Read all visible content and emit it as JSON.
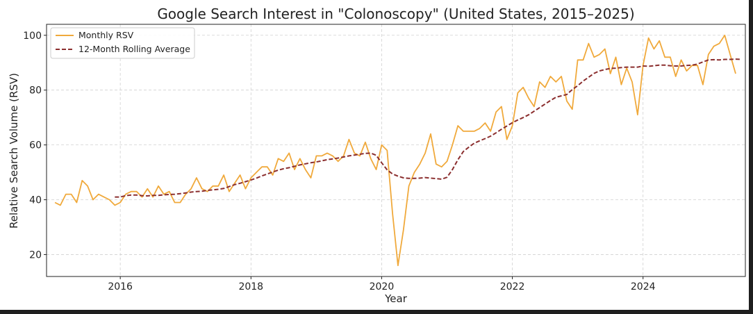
{
  "chart_data": {
    "type": "line",
    "title": "Google Search Interest in \"Colonoscopy\" (United States, 2015–2025)",
    "xlabel": "Year",
    "ylabel": "Relative Search Volume (RSV)",
    "xlim": [
      "2014-11-15",
      "2025-07-25"
    ],
    "ylim": [
      12,
      104
    ],
    "x_ticks": [
      {
        "label": "2016",
        "value": "2016-01-01"
      },
      {
        "label": "2018",
        "value": "2018-01-01"
      },
      {
        "label": "2020",
        "value": "2020-01-01"
      },
      {
        "label": "2022",
        "value": "2022-01-01"
      },
      {
        "label": "2024",
        "value": "2024-01-01"
      }
    ],
    "y_ticks": [
      20,
      40,
      60,
      80,
      100
    ],
    "grid": true,
    "legend_position": "top-left",
    "series": [
      {
        "name": "Monthly RSV",
        "color": "#f0a93b",
        "style": "solid",
        "start_month": "2015-01",
        "values": [
          39,
          38,
          42,
          42,
          39,
          47,
          45,
          40,
          42,
          41,
          40,
          38,
          39,
          42,
          43,
          43,
          41,
          44,
          41,
          45,
          42,
          43,
          39,
          39,
          42,
          44,
          48,
          44,
          43,
          45,
          45,
          49,
          43,
          46,
          49,
          44,
          48,
          50,
          52,
          52,
          49,
          55,
          54,
          57,
          51,
          55,
          51,
          48,
          56,
          56,
          57,
          56,
          54,
          56,
          62,
          57,
          56,
          61,
          55,
          51,
          60,
          58,
          35,
          16,
          29,
          45,
          50,
          53,
          57,
          64,
          53,
          52,
          54,
          60,
          67,
          65,
          65,
          65,
          66,
          68,
          65,
          72,
          74,
          62,
          67,
          79,
          81,
          77,
          74,
          83,
          81,
          85,
          83,
          85,
          76,
          73,
          91,
          91,
          97,
          92,
          93,
          95,
          86,
          92,
          82,
          88,
          83,
          71,
          89,
          99,
          95,
          98,
          92,
          92,
          85,
          91,
          87,
          89,
          89,
          82,
          93,
          96,
          97,
          100,
          93,
          86
        ]
      },
      {
        "name": "12-Month Rolling Average",
        "color": "#8b2e2e",
        "style": "dashed",
        "start_month": "2015-12",
        "values": [
          41,
          41,
          41.5,
          41.7,
          41.7,
          41.5,
          41.4,
          41.6,
          41.6,
          41.8,
          41.9,
          42,
          42.2,
          42.5,
          42.8,
          43,
          43.1,
          43.4,
          43.6,
          43.8,
          44.1,
          44.8,
          45.5,
          46,
          46.6,
          47.2,
          47.9,
          48.7,
          49.4,
          50.1,
          50.8,
          51.3,
          51.7,
          52.2,
          52.7,
          53.1,
          53.5,
          53.8,
          54.2,
          54.6,
          54.9,
          55.2,
          55.6,
          56,
          56.3,
          56.6,
          56.9,
          57,
          56.2,
          53.5,
          50.9,
          49.4,
          48.6,
          48,
          47.8,
          47.8,
          47.9,
          48.1,
          47.9,
          47.7,
          47.5,
          48.2,
          51,
          54.6,
          57.6,
          59.2,
          60.6,
          61.5,
          62.3,
          63.2,
          64.4,
          65.7,
          66.9,
          68.1,
          69.1,
          70,
          71,
          72.3,
          73.6,
          74.9,
          76.2,
          77.4,
          77.9,
          78.4,
          80.2,
          81.6,
          83.3,
          84.7,
          86.1,
          87,
          87.5,
          87.9,
          88,
          88.2,
          88.4,
          88.4,
          88.4,
          88.8,
          88.7,
          88.9,
          89.1,
          89.1,
          88.9,
          88.8,
          88.8,
          89,
          89.1,
          89.5,
          90.3,
          91,
          91.1,
          91,
          91.2,
          91.2,
          91.3,
          91.2
        ]
      }
    ]
  }
}
